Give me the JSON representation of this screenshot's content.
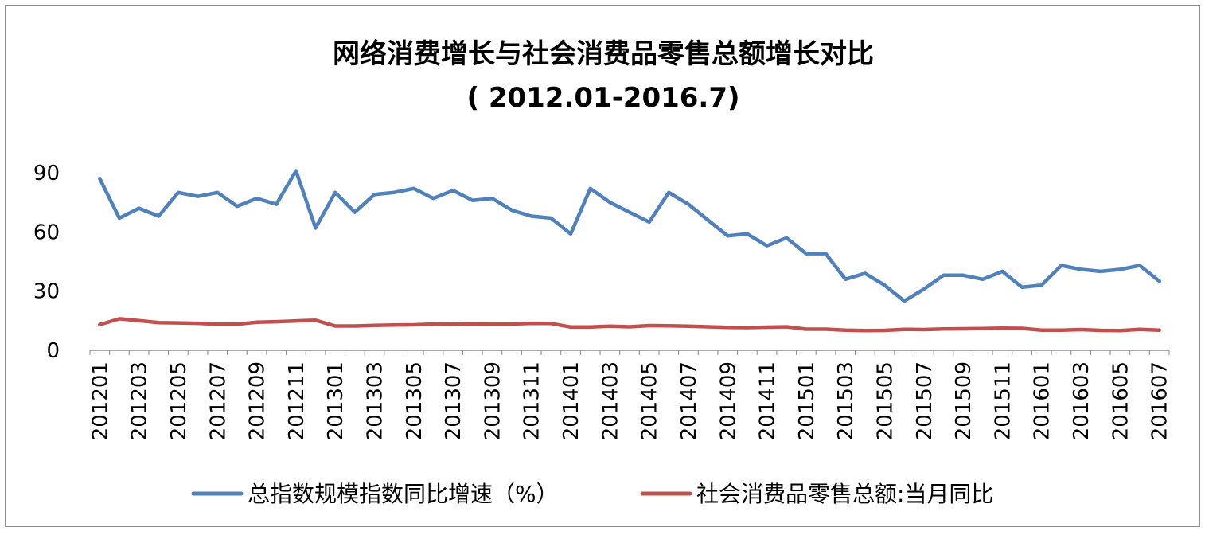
{
  "chart_data": {
    "type": "line",
    "title": "网络消费增长与社会消费品零售总额增长对比",
    "subtitle": "( 2012.01-2016.7)",
    "xlabel": "",
    "ylabel": "",
    "ylim": [
      0,
      90
    ],
    "yticks": [
      "0",
      "30",
      "60",
      "90"
    ],
    "grid": false,
    "legend": "bottom",
    "x": [
      "201201",
      "201202",
      "201203",
      "201204",
      "201205",
      "201206",
      "201207",
      "201208",
      "201209",
      "201210",
      "201211",
      "201212",
      "201301",
      "201302",
      "201303",
      "201304",
      "201305",
      "201306",
      "201307",
      "201308",
      "201309",
      "201310",
      "201311",
      "201312",
      "201401",
      "201402",
      "201403",
      "201404",
      "201405",
      "201406",
      "201407",
      "201408",
      "201409",
      "201410",
      "201411",
      "201412",
      "201501",
      "201502",
      "201503",
      "201504",
      "201505",
      "201506",
      "201507",
      "201508",
      "201509",
      "201510",
      "201511",
      "201512",
      "201601",
      "201602",
      "201603",
      "201604",
      "201605",
      "201606",
      "201607"
    ],
    "x_tick_labels": [
      "201201",
      "201203",
      "201205",
      "201207",
      "201209",
      "201211",
      "201301",
      "201303",
      "201305",
      "201307",
      "201309",
      "201311",
      "201401",
      "201403",
      "201405",
      "201407",
      "201409",
      "201411",
      "201501",
      "201503",
      "201505",
      "201507",
      "201509",
      "201511",
      "201601",
      "201603",
      "201605",
      "201607"
    ],
    "series": [
      {
        "name": "总指数规模指数同比增速（%）",
        "color": "#4f81bd",
        "values": [
          87,
          67,
          72,
          68,
          80,
          78,
          80,
          73,
          77,
          74,
          91,
          62,
          80,
          70,
          79,
          80,
          82,
          77,
          81,
          76,
          77,
          71,
          68,
          67,
          59,
          82,
          75,
          70,
          65,
          80,
          74,
          66,
          58,
          59,
          53,
          57,
          49,
          49,
          36,
          39,
          33,
          25,
          31,
          38,
          38,
          36,
          40,
          32,
          33,
          43,
          41,
          40,
          41,
          43,
          35
        ]
      },
      {
        "name": "社会消费品零售总额:当月同比",
        "color": "#c0504d",
        "values": [
          13,
          16,
          15,
          14,
          13.9,
          13.7,
          13.2,
          13.2,
          14.2,
          14.5,
          14.9,
          15.2,
          12.3,
          12.3,
          12.6,
          12.8,
          12.9,
          13.3,
          13.2,
          13.4,
          13.3,
          13.3,
          13.7,
          13.6,
          11.8,
          11.8,
          12.2,
          11.9,
          12.5,
          12.4,
          12.2,
          11.9,
          11.6,
          11.5,
          11.7,
          11.9,
          10.7,
          10.7,
          10.2,
          10.0,
          10.1,
          10.6,
          10.5,
          10.8,
          10.9,
          11.0,
          11.2,
          11.1,
          10.2,
          10.2,
          10.5,
          10.1,
          10.0,
          10.6,
          10.2
        ]
      }
    ]
  }
}
